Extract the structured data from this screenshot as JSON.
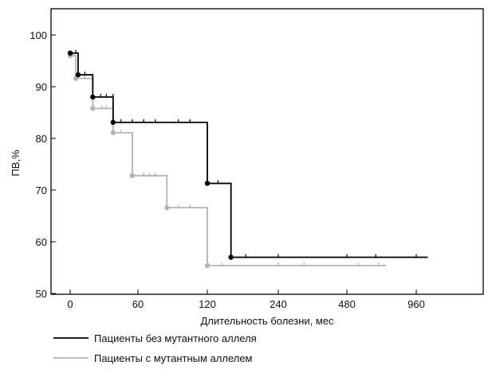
{
  "chart_data": {
    "type": "line",
    "title": "",
    "xlabel": "Длительность болезни, мес",
    "ylabel": "ПВ,%",
    "x_ticks": [
      "0",
      "60",
      "120",
      "240",
      "480",
      "960"
    ],
    "x_tick_values": [
      0,
      60,
      120,
      240,
      480,
      960
    ],
    "y_ticks": [
      "50",
      "60",
      "70",
      "80",
      "90",
      "100"
    ],
    "ylim": [
      50,
      100
    ],
    "grid": false,
    "legend_position": "bottom-left",
    "series": [
      {
        "name": "Пациенты без мутантного аллеля",
        "color": "#000000",
        "step": [
          [
            0,
            96.5
          ],
          [
            7,
            92.3
          ],
          [
            20,
            88.0
          ],
          [
            38,
            83.1
          ],
          [
            120,
            71.3
          ],
          [
            160,
            57.0
          ],
          [
            1040,
            57.0
          ]
        ],
        "events": [
          [
            0,
            96.5
          ],
          [
            7,
            92.3
          ],
          [
            20,
            88.0
          ],
          [
            38,
            83.1
          ],
          [
            120,
            71.3
          ],
          [
            160,
            57.0
          ]
        ],
        "censored": [
          [
            5,
            96.5
          ],
          [
            13,
            92.3
          ],
          [
            27,
            88.0
          ],
          [
            32,
            88.0
          ],
          [
            38,
            88.0
          ],
          [
            45,
            83.1
          ],
          [
            55,
            83.1
          ],
          [
            65,
            83.1
          ],
          [
            75,
            83.1
          ],
          [
            95,
            83.1
          ],
          [
            105,
            83.1
          ],
          [
            138,
            71.3
          ],
          [
            185,
            57.0
          ],
          [
            240,
            57.0
          ],
          [
            480,
            57.0
          ],
          [
            680,
            57.0
          ],
          [
            960,
            57.0
          ]
        ]
      },
      {
        "name": "Пациенты с мутантным аллелем",
        "color": "#b4b4b4",
        "step": [
          [
            0,
            96.0
          ],
          [
            5,
            91.6
          ],
          [
            20,
            85.8
          ],
          [
            38,
            81.1
          ],
          [
            55,
            72.8
          ],
          [
            85,
            66.6
          ],
          [
            120,
            55.4
          ],
          [
            750,
            55.4
          ]
        ],
        "events": [
          [
            0,
            96.0
          ],
          [
            5,
            91.6
          ],
          [
            20,
            85.8
          ],
          [
            38,
            81.1
          ],
          [
            55,
            72.8
          ],
          [
            85,
            66.6
          ],
          [
            120,
            55.4
          ]
        ],
        "censored": [
          [
            3,
            96.0
          ],
          [
            13,
            91.6
          ],
          [
            28,
            85.8
          ],
          [
            32,
            85.8
          ],
          [
            45,
            81.1
          ],
          [
            65,
            72.8
          ],
          [
            70,
            72.8
          ],
          [
            75,
            72.8
          ],
          [
            95,
            66.6
          ],
          [
            105,
            66.6
          ],
          [
            145,
            55.4
          ],
          [
            240,
            55.4
          ],
          [
            330,
            55.4
          ],
          [
            560,
            55.4
          ],
          [
            700,
            55.4
          ]
        ]
      }
    ]
  }
}
